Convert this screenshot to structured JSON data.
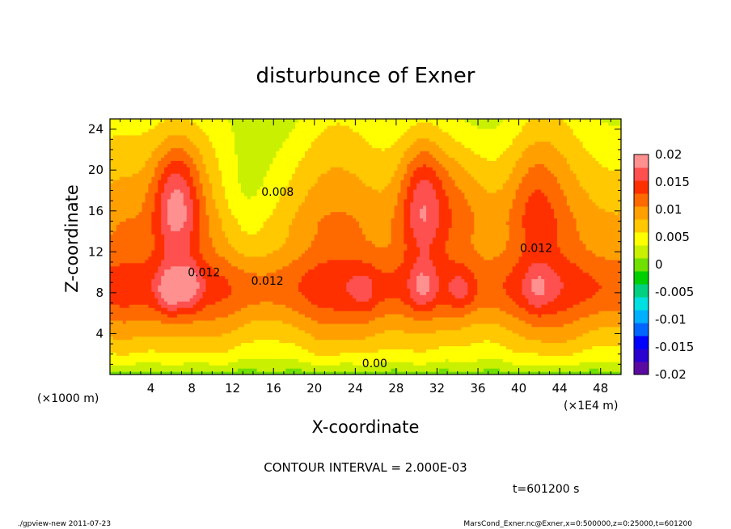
{
  "chart_data": {
    "type": "heatmap",
    "title": "disturbunce of Exner",
    "xlabel": "X-coordinate",
    "ylabel": "Z-coordinate",
    "x_units": "(×1E4 m)",
    "y_units": "(×1000 m)",
    "xlim": [
      0,
      50
    ],
    "ylim": [
      0,
      25
    ],
    "x_ticks": [
      "4",
      "8",
      "12",
      "16",
      "20",
      "24",
      "28",
      "32",
      "36",
      "40",
      "44",
      "48"
    ],
    "y_ticks": [
      "4",
      "8",
      "12",
      "16",
      "20",
      "24"
    ],
    "colorbar": {
      "min": -0.02,
      "max": 0.02,
      "tick_labels": [
        "0.02",
        "0.015",
        "0.01",
        "0.005",
        "0",
        "-0.005",
        "-0.01",
        "-0.015",
        "-0.02"
      ]
    },
    "contour_labels": [
      {
        "text": "0.008",
        "x": 16.4,
        "z": 17.5
      },
      {
        "text": "0.012",
        "x": 41.7,
        "z": 12.0
      },
      {
        "text": "0.012",
        "x": 9.2,
        "z": 9.6
      },
      {
        "text": "0.012",
        "x": 15.4,
        "z": 8.8
      },
      {
        "text": "0.00",
        "x": 25.9,
        "z": 0.7
      }
    ],
    "features": {
      "ridges": [
        {
          "x": 6.5,
          "amp": 0.011,
          "sx": 1.6
        },
        {
          "x": 30.5,
          "amp": 0.0085,
          "sx": 1.5
        },
        {
          "x": 34.0,
          "amp": 0.004,
          "sx": 2.5
        },
        {
          "x": 41.5,
          "amp": 0.004,
          "sx": 1.8
        }
      ],
      "trough": {
        "x": 13.0,
        "amp": -0.004,
        "sx": 2.0
      },
      "peak_cores": [
        {
          "x": 5.8,
          "z": 8.2,
          "amp": 0.0055
        },
        {
          "x": 7.7,
          "z": 8.6,
          "amp": 0.005
        },
        {
          "x": 30.6,
          "z": 8.4,
          "amp": 0.004
        },
        {
          "x": 34.3,
          "z": 8.2,
          "amp": 0.0035
        },
        {
          "x": 41.8,
          "z": 8.3,
          "amp": 0.003
        },
        {
          "x": 24.8,
          "z": 8.2,
          "amp": 0.0025
        }
      ]
    },
    "annotations": {
      "contour_interval": "CONTOUR INTERVAL = 2.000E-03",
      "time": "t=601200 s"
    }
  },
  "footer": {
    "left": "./gpview-new   2011-07-23",
    "right": "MarsCond_Exner.nc@Exner,x=0:500000,z=0:25000,t=601200"
  },
  "palette": [
    "#5a0aa0",
    "#2a00d0",
    "#0000ff",
    "#0066ff",
    "#00b0ff",
    "#00e0e0",
    "#00d080",
    "#00d000",
    "#70e000",
    "#c8f000",
    "#ffff00",
    "#ffc800",
    "#ffa000",
    "#ff6a00",
    "#ff3000",
    "#ff5050",
    "#ff9090"
  ]
}
